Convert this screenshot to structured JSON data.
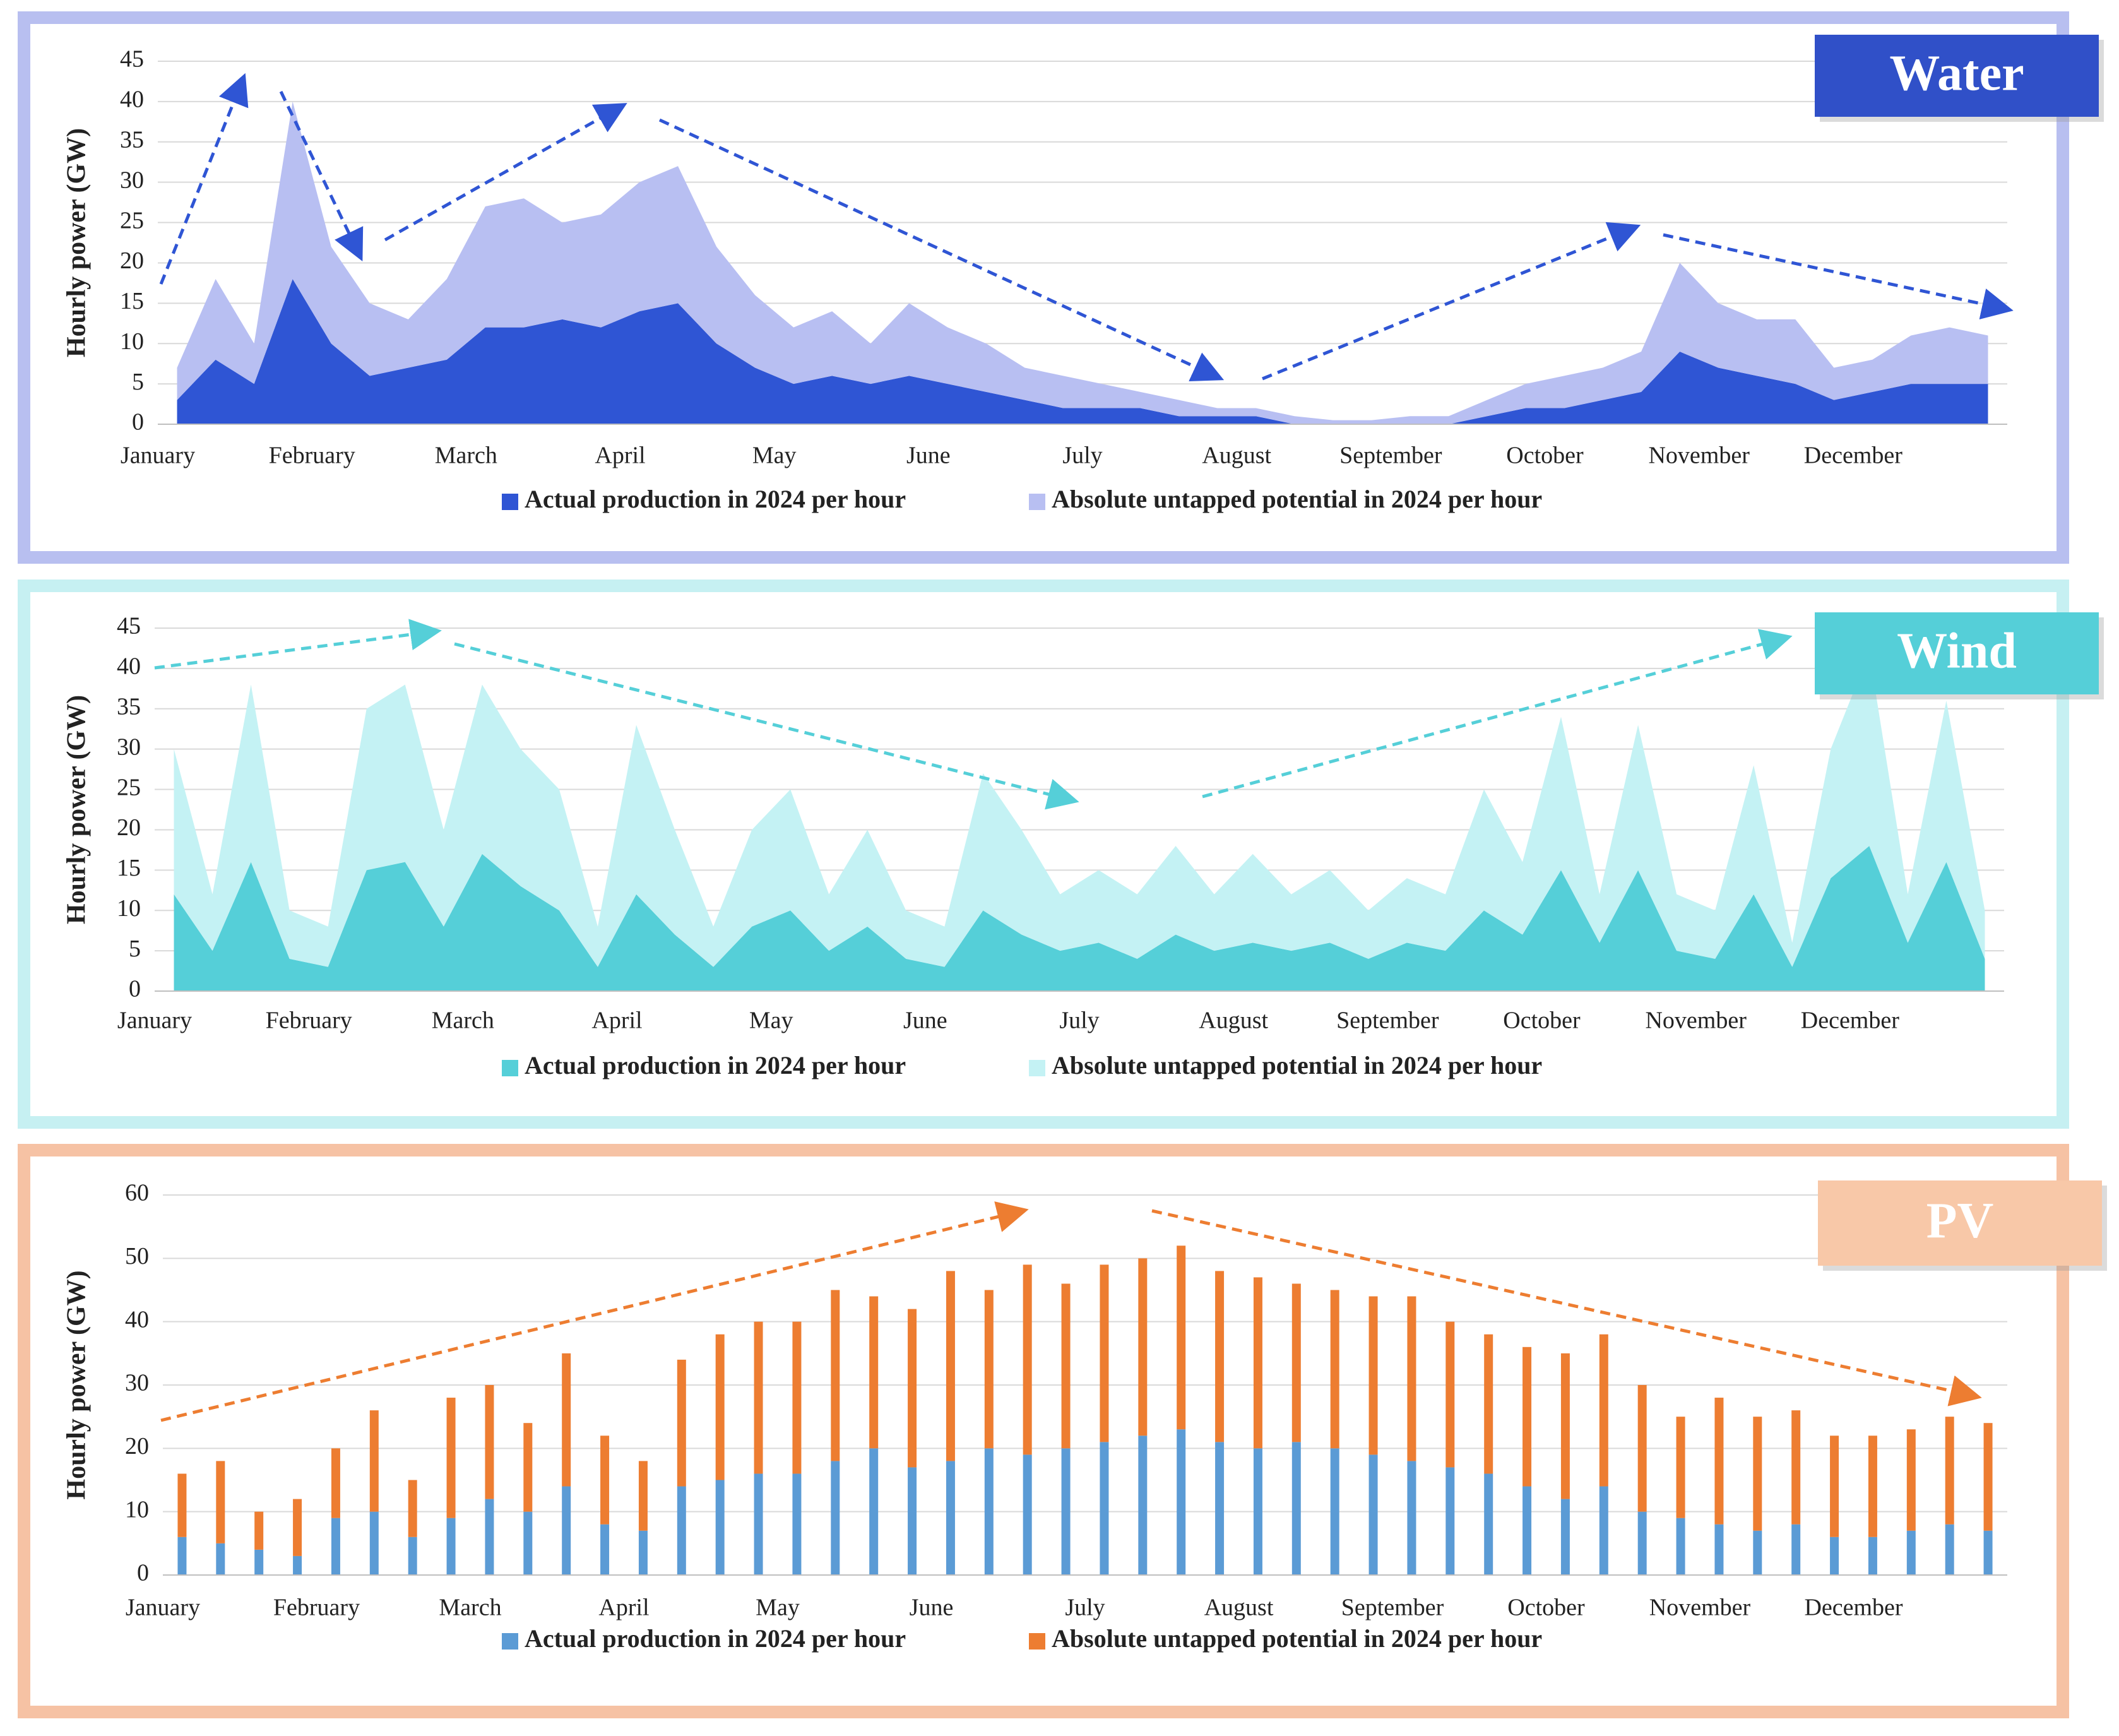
{
  "chart_data": [
    {
      "type": "area",
      "title": "Water",
      "y_label": "Hourly power (GW)",
      "categories": [
        "January",
        "February",
        "March",
        "April",
        "May",
        "June",
        "July",
        "August",
        "September",
        "October",
        "November",
        "December"
      ],
      "series": [
        {
          "name": "Actual production in 2024 per hour",
          "color": "#2f55d4",
          "values": [
            [
              3,
              8,
              5,
              18
            ],
            [
              10,
              6,
              7,
              8
            ],
            [
              12,
              12,
              13,
              12
            ],
            [
              14,
              15,
              10,
              7
            ],
            [
              5,
              6,
              5,
              6
            ],
            [
              5,
              4,
              3,
              2
            ],
            [
              2,
              2,
              1,
              1
            ],
            [
              1,
              0,
              0,
              0
            ],
            [
              0,
              0,
              1,
              2
            ],
            [
              2,
              3,
              4,
              9
            ],
            [
              7,
              6,
              5,
              3
            ],
            [
              4,
              5,
              5,
              5
            ]
          ]
        },
        {
          "name": "Absolute untapped potential in 2024 per hour",
          "color": "#b8bff2",
          "values": [
            [
              4,
              10,
              5,
              22
            ],
            [
              12,
              9,
              6,
              10
            ],
            [
              15,
              16,
              12,
              14
            ],
            [
              16,
              17,
              12,
              9
            ],
            [
              7,
              8,
              5,
              9
            ],
            [
              7,
              6,
              4,
              4
            ],
            [
              3,
              2,
              2,
              1
            ],
            [
              1,
              1,
              0.5,
              0.5
            ],
            [
              1,
              1,
              2,
              3
            ],
            [
              4,
              4,
              5,
              11
            ],
            [
              8,
              7,
              8,
              4
            ],
            [
              4,
              6,
              7,
              6
            ]
          ]
        }
      ],
      "ylim": [
        0,
        45
      ],
      "yticks": [
        0,
        5,
        10,
        15,
        20,
        25,
        30,
        35,
        40,
        45
      ],
      "grid": true
    },
    {
      "type": "area",
      "title": "Wind",
      "y_label": "Hourly power (GW)",
      "categories": [
        "January",
        "February",
        "March",
        "April",
        "May",
        "June",
        "July",
        "August",
        "September",
        "October",
        "November",
        "December"
      ],
      "series": [
        {
          "name": "Actual production in 2024 per hour",
          "color": "#55cfd8",
          "values": [
            [
              12,
              5,
              16,
              4
            ],
            [
              3,
              15,
              16,
              8
            ],
            [
              17,
              13,
              10,
              3
            ],
            [
              12,
              7,
              3,
              8
            ],
            [
              10,
              5,
              8,
              4
            ],
            [
              3,
              10,
              7,
              5
            ],
            [
              6,
              4,
              7,
              5
            ],
            [
              6,
              5,
              6,
              4
            ],
            [
              6,
              5,
              10,
              7
            ],
            [
              15,
              6,
              15,
              5
            ],
            [
              4,
              12,
              3,
              14
            ],
            [
              18,
              6,
              16,
              4
            ]
          ]
        },
        {
          "name": "Absolute untapped potential in 2024 per hour",
          "color": "#c4f2f4",
          "values": [
            [
              18,
              7,
              22,
              6
            ],
            [
              5,
              20,
              22,
              12
            ],
            [
              21,
              17,
              15,
              5
            ],
            [
              21,
              13,
              5,
              12
            ],
            [
              15,
              7,
              12,
              6
            ],
            [
              5,
              17,
              13,
              7
            ],
            [
              9,
              8,
              11,
              7
            ],
            [
              11,
              7,
              9,
              6
            ],
            [
              8,
              7,
              15,
              9
            ],
            [
              19,
              6,
              18,
              7
            ],
            [
              6,
              16,
              3,
              16
            ],
            [
              24,
              6,
              20,
              6
            ]
          ]
        }
      ],
      "ylim": [
        0,
        45
      ],
      "yticks": [
        0,
        5,
        10,
        15,
        20,
        25,
        30,
        35,
        40,
        45
      ],
      "grid": true
    },
    {
      "type": "bar",
      "title": "PV",
      "y_label": "Hourly power (GW)",
      "categories": [
        "January",
        "February",
        "March",
        "April",
        "May",
        "June",
        "July",
        "August",
        "September",
        "October",
        "November",
        "December"
      ],
      "series": [
        {
          "name": "Actual production in 2024 per hour",
          "color": "#5b9bd5",
          "values": [
            [
              6,
              5,
              4,
              3
            ],
            [
              9,
              10,
              6,
              9
            ],
            [
              12,
              10,
              14,
              8
            ],
            [
              7,
              14,
              15,
              16
            ],
            [
              16,
              18,
              20,
              17
            ],
            [
              18,
              20,
              19,
              20
            ],
            [
              21,
              22,
              23,
              21
            ],
            [
              20,
              21,
              20,
              19
            ],
            [
              18,
              17,
              16,
              14
            ],
            [
              12,
              14,
              10,
              9
            ],
            [
              8,
              7,
              8,
              6
            ],
            [
              6,
              7,
              8,
              7
            ]
          ]
        },
        {
          "name": "Absolute untapped potential in 2024 per hour",
          "color": "#ed7d31",
          "values": [
            [
              10,
              13,
              6,
              9
            ],
            [
              11,
              16,
              9,
              19
            ],
            [
              18,
              14,
              21,
              14
            ],
            [
              11,
              20,
              23,
              24
            ],
            [
              24,
              27,
              24,
              25
            ],
            [
              30,
              25,
              30,
              26
            ],
            [
              28,
              28,
              29,
              27
            ],
            [
              27,
              25,
              25,
              25
            ],
            [
              26,
              23,
              22,
              22
            ],
            [
              23,
              24,
              20,
              16
            ],
            [
              20,
              18,
              18,
              16
            ],
            [
              16,
              16,
              17,
              17
            ]
          ]
        }
      ],
      "ylim": [
        0,
        60
      ],
      "yticks": [
        0,
        10,
        20,
        30,
        40,
        50,
        60
      ],
      "grid": true
    }
  ]
}
